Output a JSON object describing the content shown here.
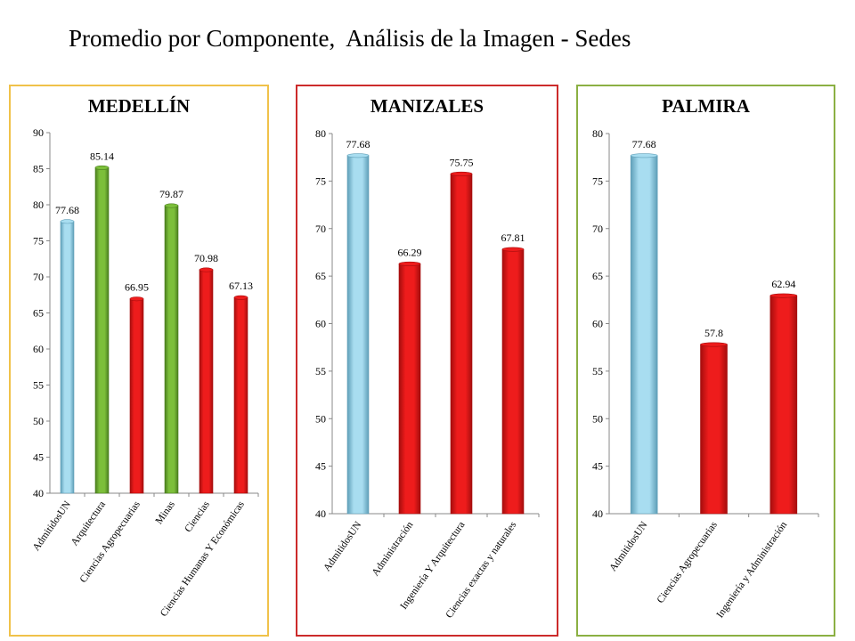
{
  "title": "Promedio por Componente,  Análisis de la Imagen - Sedes",
  "colors": {
    "blue": "#a8ddf0",
    "green": "#7cbf3a",
    "red": "#ee1c1c"
  },
  "chart_data": [
    {
      "type": "bar",
      "title": "MEDELLÍN",
      "categories": [
        "AdmitidosUN",
        "Arquitectura",
        "Ciencias Agropecuarias",
        "Minas",
        "Ciencias",
        "Ciencias Humanas Y Económicas"
      ],
      "values": [
        77.68,
        85.14,
        66.95,
        79.87,
        70.98,
        67.13
      ],
      "value_labels": [
        "77.68",
        "85.14",
        "66.95",
        "79.87",
        "70.98",
        "67.13"
      ],
      "bar_colors": [
        "blue",
        "green",
        "red",
        "green",
        "red",
        "red"
      ],
      "ylim": [
        40,
        90
      ],
      "yticks": [
        40,
        45,
        50,
        55,
        60,
        65,
        70,
        75,
        80,
        85,
        90
      ],
      "grid": false
    },
    {
      "type": "bar",
      "title": "MANIZALES",
      "categories": [
        "AdmitidosUN",
        "Administración",
        "Ingeniería Y Arquitectura",
        "Ciencias exactas y naturales"
      ],
      "values": [
        77.68,
        66.29,
        75.75,
        67.81
      ],
      "value_labels": [
        "77.68",
        "66.29",
        "75.75",
        "67.81"
      ],
      "bar_colors": [
        "blue",
        "red",
        "red",
        "red"
      ],
      "ylim": [
        40,
        80
      ],
      "yticks": [
        40,
        45,
        50,
        55,
        60,
        65,
        70,
        75,
        80
      ],
      "grid": false
    },
    {
      "type": "bar",
      "title": "PALMIRA",
      "categories": [
        "AdmitidosUN",
        "Ciencias Agropecuarias",
        "Ingeniería y Administración"
      ],
      "values": [
        77.68,
        57.8,
        62.94
      ],
      "value_labels": [
        "77.68",
        "57.8",
        "62.94"
      ],
      "bar_colors": [
        "blue",
        "red",
        "red"
      ],
      "ylim": [
        40,
        80
      ],
      "yticks": [
        40,
        45,
        50,
        55,
        60,
        65,
        70,
        75,
        80
      ],
      "grid": false
    }
  ]
}
